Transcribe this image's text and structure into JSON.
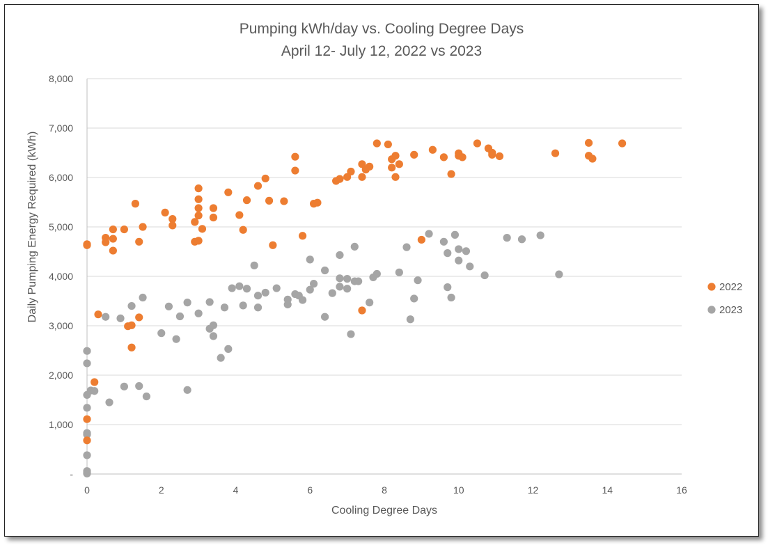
{
  "chart_data": {
    "type": "scatter",
    "title": "Pumping kWh/day vs. Cooling Degree Days",
    "subtitle": "April 12- July 12, 2022 vs 2023",
    "xlabel": "Cooling Degree Days",
    "ylabel": "Daily Pumping Energy Required (kWh)",
    "xlim": [
      0,
      16
    ],
    "ylim": [
      0,
      8000
    ],
    "x_ticks": [
      0,
      2,
      4,
      6,
      8,
      10,
      12,
      14,
      16
    ],
    "y_ticks": [
      0,
      1000,
      2000,
      3000,
      4000,
      5000,
      6000,
      7000,
      8000
    ],
    "y_tick_labels": [
      "-",
      "1,000",
      "2,000",
      "3,000",
      "4,000",
      "5,000",
      "6,000",
      "7,000",
      "8,000"
    ],
    "grid": "horizontal",
    "legend_position": "right",
    "series": [
      {
        "name": "2022",
        "color": "#ED7D31",
        "points": [
          [
            0,
            4650
          ],
          [
            0,
            4630
          ],
          [
            0,
            1110
          ],
          [
            0,
            680
          ],
          [
            0.2,
            1860
          ],
          [
            0.3,
            3230
          ],
          [
            0.5,
            4780
          ],
          [
            0.5,
            4690
          ],
          [
            0.7,
            4950
          ],
          [
            0.7,
            4760
          ],
          [
            0.7,
            4520
          ],
          [
            1.0,
            4950
          ],
          [
            1.1,
            2990
          ],
          [
            1.2,
            3010
          ],
          [
            1.2,
            2560
          ],
          [
            1.3,
            5470
          ],
          [
            1.4,
            4700
          ],
          [
            1.4,
            3170
          ],
          [
            1.5,
            5000
          ],
          [
            2.1,
            5290
          ],
          [
            2.3,
            5160
          ],
          [
            2.3,
            5030
          ],
          [
            2.9,
            5100
          ],
          [
            2.9,
            4700
          ],
          [
            3.0,
            5780
          ],
          [
            3.0,
            5560
          ],
          [
            3.0,
            5380
          ],
          [
            3.0,
            5230
          ],
          [
            3.0,
            4720
          ],
          [
            3.1,
            4960
          ],
          [
            3.4,
            5380
          ],
          [
            3.4,
            5190
          ],
          [
            3.8,
            5700
          ],
          [
            4.1,
            5240
          ],
          [
            4.2,
            4940
          ],
          [
            4.3,
            5540
          ],
          [
            4.6,
            5830
          ],
          [
            4.8,
            5980
          ],
          [
            4.9,
            5530
          ],
          [
            5.0,
            4630
          ],
          [
            5.3,
            5520
          ],
          [
            5.6,
            6420
          ],
          [
            5.6,
            6140
          ],
          [
            5.8,
            4820
          ],
          [
            6.1,
            5470
          ],
          [
            6.2,
            5490
          ],
          [
            6.7,
            5930
          ],
          [
            6.8,
            5970
          ],
          [
            7.0,
            6010
          ],
          [
            7.1,
            6120
          ],
          [
            7.4,
            6270
          ],
          [
            7.4,
            6010
          ],
          [
            7.4,
            3310
          ],
          [
            7.5,
            6160
          ],
          [
            7.6,
            6220
          ],
          [
            7.8,
            6690
          ],
          [
            8.1,
            6670
          ],
          [
            8.2,
            6370
          ],
          [
            8.2,
            6200
          ],
          [
            8.3,
            6440
          ],
          [
            8.3,
            6010
          ],
          [
            8.4,
            6270
          ],
          [
            8.8,
            6460
          ],
          [
            9.0,
            4740
          ],
          [
            9.3,
            6560
          ],
          [
            9.6,
            6410
          ],
          [
            9.8,
            6070
          ],
          [
            10.0,
            6490
          ],
          [
            10.0,
            6440
          ],
          [
            10.1,
            6410
          ],
          [
            10.5,
            6690
          ],
          [
            10.8,
            6590
          ],
          [
            10.9,
            6500
          ],
          [
            10.9,
            6460
          ],
          [
            11.1,
            6430
          ],
          [
            12.6,
            6490
          ],
          [
            13.5,
            6700
          ],
          [
            13.5,
            6440
          ],
          [
            13.6,
            6380
          ],
          [
            14.4,
            6690
          ]
        ]
      },
      {
        "name": "2023",
        "color": "#A5A5A5",
        "points": [
          [
            0,
            2490
          ],
          [
            0,
            2240
          ],
          [
            0,
            1600
          ],
          [
            0,
            1340
          ],
          [
            0,
            830
          ],
          [
            0,
            800
          ],
          [
            0,
            380
          ],
          [
            0,
            60
          ],
          [
            0,
            30
          ],
          [
            0,
            10
          ],
          [
            0.1,
            1690
          ],
          [
            0.2,
            1680
          ],
          [
            0.5,
            3180
          ],
          [
            0.6,
            1450
          ],
          [
            0.9,
            3150
          ],
          [
            1.0,
            1770
          ],
          [
            1.2,
            3400
          ],
          [
            1.4,
            1780
          ],
          [
            1.5,
            3570
          ],
          [
            1.6,
            1570
          ],
          [
            2.0,
            2850
          ],
          [
            2.2,
            3390
          ],
          [
            2.4,
            2730
          ],
          [
            2.5,
            3190
          ],
          [
            2.7,
            3470
          ],
          [
            2.7,
            1700
          ],
          [
            3.0,
            3250
          ],
          [
            3.3,
            3480
          ],
          [
            3.3,
            2940
          ],
          [
            3.4,
            3010
          ],
          [
            3.4,
            2790
          ],
          [
            3.6,
            2350
          ],
          [
            3.7,
            3370
          ],
          [
            3.8,
            2530
          ],
          [
            3.9,
            3760
          ],
          [
            4.1,
            3800
          ],
          [
            4.2,
            3410
          ],
          [
            4.3,
            3750
          ],
          [
            4.5,
            4220
          ],
          [
            4.6,
            3610
          ],
          [
            4.6,
            3370
          ],
          [
            4.8,
            3670
          ],
          [
            5.1,
            3760
          ],
          [
            5.4,
            3530
          ],
          [
            5.4,
            3430
          ],
          [
            5.6,
            3640
          ],
          [
            5.7,
            3610
          ],
          [
            5.8,
            3520
          ],
          [
            6.0,
            4340
          ],
          [
            6.0,
            3730
          ],
          [
            6.1,
            3850
          ],
          [
            6.4,
            4120
          ],
          [
            6.4,
            3180
          ],
          [
            6.6,
            3660
          ],
          [
            6.8,
            4430
          ],
          [
            6.8,
            3960
          ],
          [
            6.8,
            3790
          ],
          [
            7.0,
            3950
          ],
          [
            7.0,
            3750
          ],
          [
            7.1,
            2830
          ],
          [
            7.2,
            4600
          ],
          [
            7.2,
            3900
          ],
          [
            7.3,
            3900
          ],
          [
            7.6,
            3470
          ],
          [
            7.7,
            3980
          ],
          [
            7.8,
            4050
          ],
          [
            8.4,
            4080
          ],
          [
            8.6,
            4590
          ],
          [
            8.7,
            3130
          ],
          [
            8.8,
            3550
          ],
          [
            8.9,
            3920
          ],
          [
            9.2,
            4860
          ],
          [
            9.6,
            4700
          ],
          [
            9.7,
            4470
          ],
          [
            9.7,
            3780
          ],
          [
            9.8,
            3570
          ],
          [
            9.9,
            4840
          ],
          [
            10.0,
            4550
          ],
          [
            10.0,
            4320
          ],
          [
            10.2,
            4510
          ],
          [
            10.3,
            4200
          ],
          [
            10.7,
            4020
          ],
          [
            11.3,
            4780
          ],
          [
            11.7,
            4750
          ],
          [
            12.2,
            4830
          ],
          [
            12.7,
            4040
          ]
        ]
      }
    ]
  }
}
